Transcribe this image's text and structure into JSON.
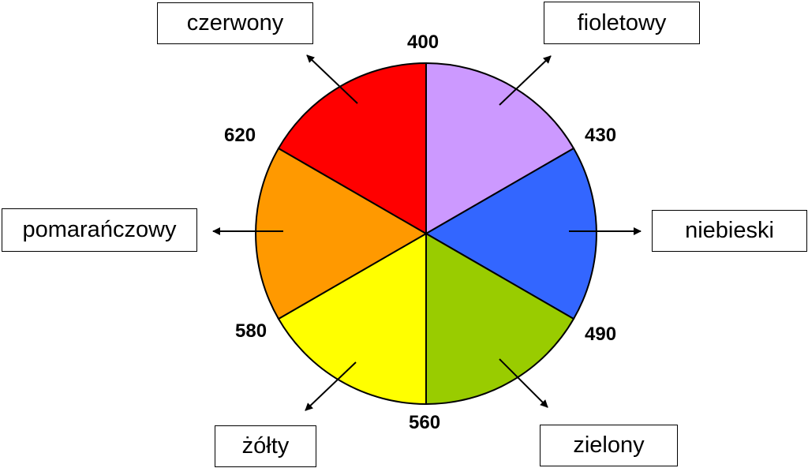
{
  "segments": [
    {
      "color_name": "czerwony",
      "fill": "#FF0000"
    },
    {
      "color_name": "fioletowy",
      "fill": "#CC99FF"
    },
    {
      "color_name": "niebieski",
      "fill": "#3366FF"
    },
    {
      "color_name": "zielony",
      "fill": "#99CC00"
    },
    {
      "color_name": "żółty",
      "fill": "#FFFF00"
    },
    {
      "color_name": "pomarańczowy",
      "fill": "#FF9900"
    }
  ],
  "wavelength_labels": [
    "400",
    "430",
    "490",
    "560",
    "580",
    "620"
  ]
}
